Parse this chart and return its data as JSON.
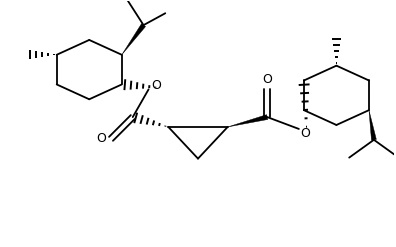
{
  "background": "#ffffff",
  "line_color": "#000000",
  "lw": 1.3,
  "fig_width": 3.96,
  "fig_height": 2.47,
  "dpi": 100,
  "xlim": [
    0,
    396
  ],
  "ylim": [
    0,
    247
  ]
}
